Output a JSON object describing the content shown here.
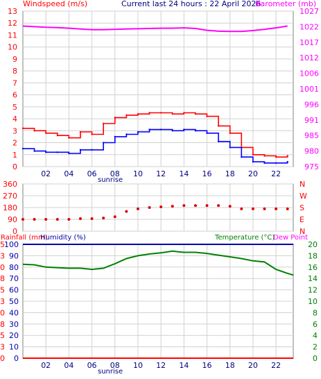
{
  "header": {
    "left_title": "Windspeed (m/s)",
    "center_title": "Current last 24 hours : 22 April 2026",
    "right_title": "Barometer (mb)"
  },
  "colors": {
    "gust": "#ff0000",
    "wind": "#0000ff",
    "barometer": "#ff00ff",
    "direction": "#dd0000",
    "rainfall": "#ff0000",
    "humidity": "#0000aa",
    "temperature": "#008000",
    "dewpoint": "#ff00ff",
    "axis_label": "#ff0000",
    "grid": "#d0d0d0",
    "sunrise": "#000080"
  },
  "chart_data": [
    {
      "type": "line",
      "title": "",
      "ylabel": "Windspeed (m/s)",
      "y2label": "Barometer (mb)",
      "ylim": [
        0,
        13
      ],
      "y2lim": [
        975,
        1027
      ],
      "yticks": [
        "0",
        "1",
        "2",
        "3",
        "4",
        "5",
        "6",
        "7",
        "8",
        "9",
        "10",
        "11",
        "12",
        "13"
      ],
      "y2ticks": [
        "975",
        "980",
        "985",
        "991",
        "996",
        "1001",
        "1006",
        "1012",
        "1017",
        "1022",
        "1027"
      ],
      "xlim": [
        0,
        23.5
      ],
      "xticks": [
        "02",
        "04",
        "06",
        "08",
        "10",
        "12",
        "14",
        "16",
        "18",
        "20",
        "22"
      ],
      "annotation": "sunrise",
      "sunrise_hour": 6.3,
      "grid": true,
      "series": [
        {
          "name": "gust",
          "color": "#ff0000",
          "x": [
            0,
            1,
            2,
            3,
            4,
            5,
            6,
            7,
            8,
            9,
            10,
            11,
            12,
            13,
            14,
            15,
            16,
            17,
            18,
            19,
            20,
            21,
            22,
            23
          ],
          "values": [
            3.2,
            3.0,
            2.8,
            2.6,
            2.4,
            2.9,
            2.7,
            3.6,
            4.1,
            4.3,
            4.4,
            4.5,
            4.5,
            4.4,
            4.5,
            4.4,
            4.2,
            3.4,
            2.8,
            1.6,
            1.0,
            0.9,
            0.8,
            0.9
          ]
        },
        {
          "name": "wind",
          "color": "#0000ff",
          "x": [
            0,
            1,
            2,
            3,
            4,
            5,
            6,
            7,
            8,
            9,
            10,
            11,
            12,
            13,
            14,
            15,
            16,
            17,
            18,
            19,
            20,
            21,
            22,
            23
          ],
          "values": [
            1.5,
            1.3,
            1.2,
            1.2,
            1.1,
            1.4,
            1.4,
            2.0,
            2.5,
            2.7,
            2.9,
            3.1,
            3.1,
            3.0,
            3.1,
            3.0,
            2.8,
            2.1,
            1.6,
            0.8,
            0.4,
            0.3,
            0.3,
            0.4
          ]
        },
        {
          "name": "barometer",
          "color": "#ff00ff",
          "x": [
            0,
            1,
            2,
            3,
            4,
            5,
            6,
            7,
            8,
            9,
            10,
            11,
            12,
            13,
            14,
            15,
            16,
            17,
            18,
            19,
            20,
            21,
            22,
            23
          ],
          "values": [
            1022.0,
            1021.8,
            1021.6,
            1021.5,
            1021.3,
            1021.0,
            1020.8,
            1020.8,
            1020.9,
            1021.0,
            1021.1,
            1021.2,
            1021.3,
            1021.3,
            1021.4,
            1021.2,
            1020.6,
            1020.3,
            1020.2,
            1020.2,
            1020.5,
            1020.9,
            1021.4,
            1022.0
          ]
        }
      ]
    },
    {
      "type": "scatter",
      "title": "",
      "ylabel": "",
      "ylim": [
        0,
        360
      ],
      "yticks": [
        "0",
        "90",
        "180",
        "270",
        "360"
      ],
      "y2ticks": [
        "N",
        "E",
        "S",
        "W",
        "N"
      ],
      "xlim": [
        0,
        23.5
      ],
      "grid": true,
      "series": [
        {
          "name": "direction",
          "color": "#dd0000",
          "x": [
            0,
            1,
            2,
            3,
            4,
            5,
            6,
            7,
            8,
            9,
            10,
            11,
            12,
            13,
            14,
            15,
            16,
            17,
            18,
            19,
            20,
            21,
            22,
            23
          ],
          "values": [
            90,
            90,
            90,
            90,
            90,
            95,
            95,
            100,
            110,
            150,
            170,
            180,
            185,
            190,
            195,
            195,
            195,
            195,
            190,
            170,
            170,
            170,
            170,
            170
          ]
        }
      ]
    },
    {
      "type": "line",
      "title": "",
      "ylabel": "Rainfall (mm)",
      "ylabel2": "Humidity (%)",
      "y2label": "Temperature (°C)",
      "y2label2": "Dew Point",
      "ylim": [
        0,
        100
      ],
      "yticks": [
        "0",
        "10",
        "20",
        "30",
        "40",
        "50",
        "60",
        "70",
        "80",
        "90",
        "100"
      ],
      "y1ticks_inner": [
        "0",
        "3",
        "5",
        "8",
        "10",
        "13",
        "15",
        "18",
        "20",
        "23",
        "25"
      ],
      "y2lim": [
        0,
        20
      ],
      "y2ticks": [
        "0",
        "2",
        "4",
        "6",
        "8",
        "10",
        "12",
        "14",
        "16",
        "18",
        "20"
      ],
      "xlim": [
        0,
        23.5
      ],
      "xticks": [
        "02",
        "04",
        "06",
        "08",
        "10",
        "12",
        "14",
        "16",
        "18",
        "20",
        "22"
      ],
      "annotation": "sunrise",
      "sunrise_hour": 6.3,
      "grid": true,
      "series": [
        {
          "name": "humidity",
          "color": "#0000aa",
          "x": [
            0,
            23.5
          ],
          "values": [
            100,
            100
          ]
        },
        {
          "name": "rainfall",
          "color": "#ff0000",
          "x": [
            0,
            23.5
          ],
          "values": [
            0,
            0
          ]
        },
        {
          "name": "temperature",
          "color": "#008000",
          "x": [
            0,
            1,
            2,
            3,
            4,
            5,
            6,
            7,
            8,
            9,
            10,
            11,
            12,
            13,
            14,
            15,
            16,
            17,
            18,
            19,
            20,
            21,
            22,
            23,
            23.5
          ],
          "values": [
            16.5,
            16.4,
            16.0,
            15.9,
            15.8,
            15.8,
            15.6,
            15.8,
            16.6,
            17.5,
            18.0,
            18.3,
            18.5,
            18.8,
            18.6,
            18.6,
            18.4,
            18.1,
            17.8,
            17.5,
            17.1,
            16.9,
            15.6,
            14.9,
            14.6
          ]
        }
      ]
    }
  ]
}
